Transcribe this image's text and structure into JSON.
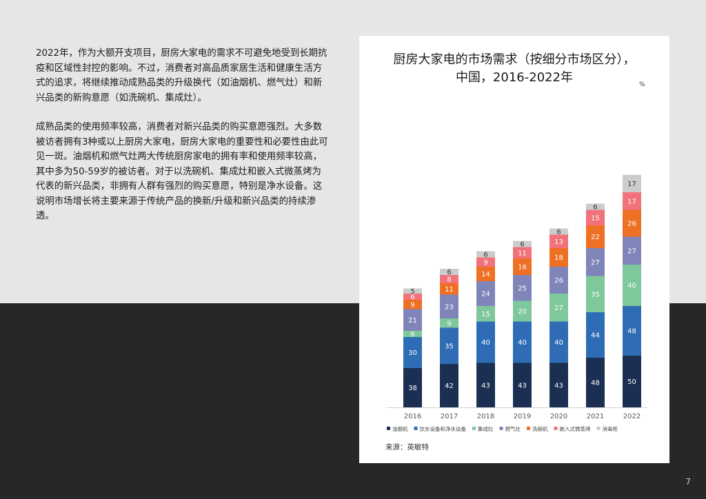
{
  "intro": {
    "paragraph1": "2022年，作为大额开支项目，厨房大家电的需求不可避免地受到长期抗疫和区域性封控的影响。不过，消费者对高品质家居生活和健康生活方式的追求，将继续推动成熟品类的升级换代（如油烟机、燃气灶）和新兴品类的新购意愿（如洗碗机、集成灶）。",
    "paragraph2": "成熟品类的使用频率较高，消费者对新兴品类的购买意愿强烈。大多数被访者拥有3种或以上厨房大家电，厨房大家电的重要性和必要性由此可见一斑。油烟机和燃气灶两大传统厨房家电的拥有率和使用频率较高，其中多为50-59岁的被访者。对于以洗碗机、集成灶和嵌入式微蒸烤为代表的新兴品类，非拥有人群有强烈的购买意愿，特别是净水设备。这说明市场增长将主要来源于传统产品的换新/升级和新兴品类的持续渗透。"
  },
  "chart_data": {
    "type": "bar",
    "stacked": true,
    "title_line1": "厨房大家电的市场需求（按细分市场区分），",
    "title_line2": "中国，2016-2022年",
    "unit": "%",
    "categories": [
      "2016",
      "2017",
      "2018",
      "2019",
      "2020",
      "2021",
      "2022"
    ],
    "series": [
      {
        "name": "油烟机",
        "color": "#1b2f52",
        "values": [
          38,
          42,
          43,
          43,
          43,
          48,
          50
        ]
      },
      {
        "name": "饮水设备和净水设备",
        "color": "#2e6db5",
        "values": [
          30,
          35,
          40,
          40,
          40,
          44,
          48
        ]
      },
      {
        "name": "集成灶",
        "color": "#7fc89b",
        "values": [
          6,
          9,
          15,
          20,
          27,
          35,
          40
        ]
      },
      {
        "name": "燃气灶",
        "color": "#8085b9",
        "values": [
          21,
          23,
          24,
          25,
          26,
          27,
          27
        ]
      },
      {
        "name": "洗碗机",
        "color": "#ee7024",
        "values": [
          9,
          11,
          14,
          16,
          18,
          22,
          26
        ]
      },
      {
        "name": "嵌入式微蒸烤",
        "color": "#f2727b",
        "values": [
          6,
          8,
          9,
          11,
          13,
          15,
          17
        ]
      },
      {
        "name": "消毒柜",
        "color": "#cccccc",
        "values": [
          5,
          6,
          6,
          6,
          6,
          6,
          17
        ]
      }
    ],
    "legend_position": "bottom",
    "grid": false
  },
  "source": "来源：英敏特",
  "page_number": "7"
}
